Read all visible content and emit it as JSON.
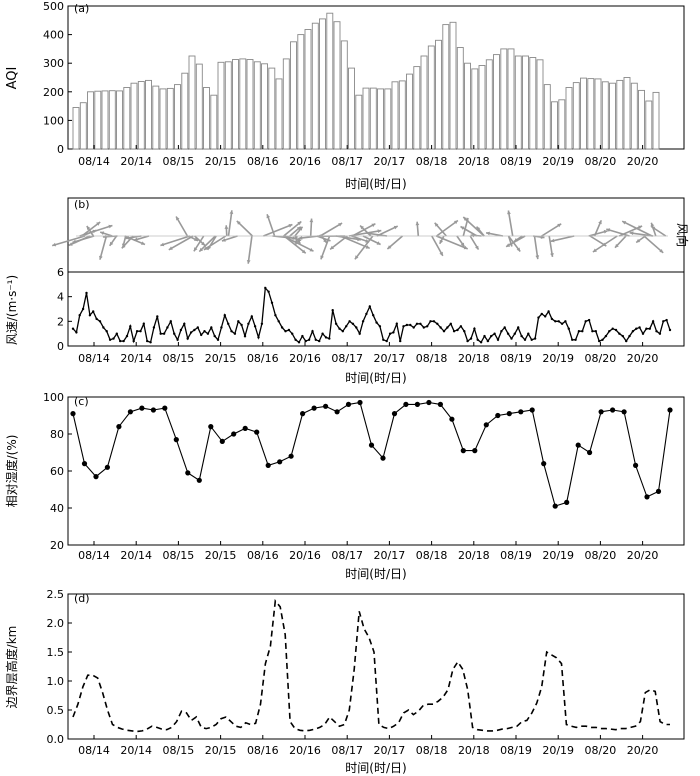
{
  "x_tick_labels": [
    "08/14",
    "20/14",
    "08/15",
    "20/15",
    "08/16",
    "20/16",
    "08/17",
    "20/17",
    "08/18",
    "20/18",
    "08/19",
    "20/19",
    "08/20",
    "20/20"
  ],
  "x_axis_label": "时间(时/日)",
  "chart_data": [
    {
      "type": "bar",
      "panel": "(a)",
      "ylabel": "AQI",
      "xlabel": "时间(时/日)",
      "ylim": [
        0,
        500
      ],
      "yticks": [
        0,
        100,
        200,
        300,
        400,
        500
      ],
      "values": [
        145,
        162,
        200,
        202,
        203,
        204,
        203,
        215,
        230,
        236,
        240,
        220,
        210,
        212,
        225,
        265,
        325,
        297,
        215,
        188,
        303,
        305,
        313,
        315,
        313,
        305,
        298,
        283,
        245,
        315,
        375,
        400,
        418,
        440,
        455,
        475,
        445,
        378,
        283,
        188,
        213,
        213,
        210,
        210,
        235,
        238,
        262,
        288,
        325,
        360,
        380,
        435,
        443,
        355,
        300,
        280,
        292,
        312,
        330,
        350,
        350,
        325,
        325,
        320,
        312,
        225,
        165,
        172,
        215,
        232,
        248,
        246,
        245,
        235,
        230,
        240,
        250,
        230,
        205,
        168,
        198
      ]
    },
    {
      "type": "vector",
      "panel": "(b)",
      "ylabel": "风向"
    },
    {
      "type": "line",
      "panel": "(b)",
      "ylabel": "风速/(m·s⁻¹)",
      "ylim": [
        0,
        6
      ],
      "yticks": [
        0,
        2,
        4,
        6
      ],
      "values": [
        1.4,
        1.1,
        2.5,
        3.0,
        4.3,
        2.5,
        2.8,
        2.2,
        2.0,
        1.5,
        1.2,
        0.5,
        0.6,
        1.0,
        0.4,
        0.4,
        0.8,
        1.6,
        0.4,
        1.2,
        1.2,
        1.8,
        0.4,
        0.3,
        1.5,
        2.4,
        1.0,
        1.0,
        1.5,
        2.0,
        1.0,
        0.5,
        1.3,
        1.8,
        0.6,
        1.1,
        1.3,
        1.5,
        0.9,
        1.2,
        1.0,
        1.5,
        0.8,
        0.5,
        1.5,
        2.5,
        1.8,
        1.2,
        1.0,
        2.0,
        1.7,
        0.8,
        1.8,
        2.4,
        1.6,
        0.7,
        1.8,
        4.7,
        4.4,
        3.5,
        2.5,
        2.0,
        1.5,
        1.2,
        1.3,
        1.0,
        0.5,
        0.3,
        0.8,
        0.4,
        0.5,
        1.2,
        0.5,
        0.4,
        1.0,
        0.7,
        0.6,
        2.9,
        1.8,
        1.4,
        1.2,
        1.6,
        2.0,
        1.8,
        1.5,
        1.0,
        2.0,
        2.6,
        3.2,
        2.5,
        1.9,
        1.6,
        0.5,
        0.4,
        1.0,
        1.1,
        1.8,
        0.4,
        1.6,
        1.7,
        1.7,
        1.5,
        1.8,
        1.8,
        1.5,
        1.6,
        2.0,
        2.0,
        1.8,
        1.5,
        1.2,
        1.5,
        1.8,
        1.2,
        1.3,
        1.6,
        1.2,
        0.4,
        0.6,
        1.4,
        0.5,
        0.3,
        0.8,
        0.4,
        0.8,
        1.0,
        0.5,
        1.2,
        1.5,
        1.0,
        0.6,
        1.0,
        1.5,
        0.8,
        0.5,
        1.0,
        0.5,
        0.6,
        2.3,
        2.6,
        2.4,
        2.8,
        2.2,
        2.0,
        2.0,
        1.8,
        2.0,
        1.4,
        0.5,
        0.5,
        1.2,
        1.2,
        2.0,
        2.1,
        1.2,
        1.2,
        0.4,
        0.5,
        0.8,
        1.2,
        1.4,
        1.3,
        1.0,
        0.8,
        0.4,
        0.8,
        1.2,
        1.4,
        1.5,
        1.0,
        1.4,
        1.4,
        2.0,
        1.2,
        1.0,
        2.0,
        2.1,
        1.3
      ]
    },
    {
      "type": "line",
      "panel": "(c)",
      "ylabel": "相对湿度/(%)",
      "xlabel": "时间(时/日)",
      "ylim": [
        20,
        100
      ],
      "yticks": [
        20,
        40,
        60,
        80,
        100
      ],
      "values": [
        91,
        64,
        57,
        62,
        84,
        92,
        94,
        93,
        94,
        77,
        59,
        55,
        84,
        76,
        80,
        83,
        81,
        63,
        65,
        68,
        91,
        94,
        95,
        92,
        96,
        97,
        74,
        67,
        91,
        96,
        96,
        97,
        96,
        88,
        71,
        71,
        85,
        90,
        91,
        92,
        93,
        64,
        41,
        43,
        74,
        70,
        92,
        93,
        92,
        63,
        46,
        49,
        93
      ]
    },
    {
      "type": "line",
      "panel": "(d)",
      "ylabel": "边界层高度/km",
      "xlabel": "时间(时/日)",
      "ylim": [
        0.0,
        2.5
      ],
      "yticks": [
        0.0,
        0.5,
        1.0,
        1.5,
        2.0,
        2.5
      ],
      "values": [
        0.38,
        0.6,
        0.9,
        1.1,
        1.1,
        1.05,
        0.8,
        0.5,
        0.25,
        0.2,
        0.17,
        0.15,
        0.14,
        0.13,
        0.14,
        0.17,
        0.22,
        0.2,
        0.17,
        0.16,
        0.2,
        0.3,
        0.48,
        0.45,
        0.32,
        0.38,
        0.2,
        0.18,
        0.2,
        0.25,
        0.35,
        0.38,
        0.3,
        0.22,
        0.2,
        0.28,
        0.25,
        0.27,
        0.6,
        1.3,
        1.6,
        2.38,
        2.28,
        1.8,
        0.3,
        0.18,
        0.15,
        0.14,
        0.15,
        0.17,
        0.2,
        0.25,
        0.38,
        0.3,
        0.22,
        0.25,
        0.5,
        1.2,
        2.2,
        1.9,
        1.75,
        1.5,
        0.25,
        0.2,
        0.18,
        0.22,
        0.28,
        0.45,
        0.5,
        0.42,
        0.48,
        0.58,
        0.6,
        0.6,
        0.65,
        0.72,
        0.85,
        1.2,
        1.33,
        1.2,
        0.85,
        0.2,
        0.16,
        0.15,
        0.14,
        0.14,
        0.15,
        0.17,
        0.18,
        0.2,
        0.22,
        0.3,
        0.32,
        0.45,
        0.62,
        0.9,
        1.5,
        1.45,
        1.4,
        1.3,
        0.25,
        0.22,
        0.2,
        0.22,
        0.22,
        0.2,
        0.2,
        0.18,
        0.18,
        0.17,
        0.16,
        0.18,
        0.18,
        0.2,
        0.22,
        0.3,
        0.8,
        0.85,
        0.82,
        0.3,
        0.25,
        0.25
      ]
    }
  ]
}
